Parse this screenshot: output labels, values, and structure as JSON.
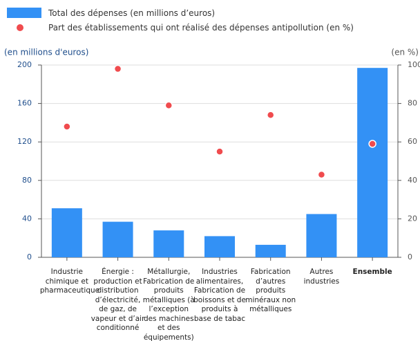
{
  "chart_data": {
    "type": "bar_dot",
    "categories": [
      "Industrie chimique et pharmaceutique",
      "Énergie : production et distribution d’électricité, de gaz, de vapeur et d’air conditionné",
      "Métallurgie, Fabrication de produits métalliques (à l’exception des machines et des équipements)",
      "Industries alimentaires, Fabrication de boissons et de produits à base de tabac",
      "Fabrication d’autres produits minéraux non métalliques",
      "Autres industries",
      "Ensemble"
    ],
    "series": [
      {
        "name": "Total des dépenses (en millions d’euros)",
        "color": "#3391f5",
        "values": [
          51,
          37,
          28,
          22,
          13,
          45,
          197
        ]
      },
      {
        "name": "Part des établissements qui ont réalisé des dépenses antipollution (en %)",
        "color": "#f04b4e",
        "values": [
          68,
          98,
          79,
          55,
          74,
          43,
          59
        ],
        "axis": "y2"
      }
    ],
    "ylabel": "(en millions d'euros)",
    "y2label": "(en %)",
    "ylim": [
      0,
      200
    ],
    "yticks": [
      0,
      40,
      80,
      120,
      160,
      200
    ],
    "y2lim": [
      0,
      100
    ],
    "y2ticks": [
      0,
      20,
      40,
      60,
      80,
      100
    ],
    "grid": true
  }
}
